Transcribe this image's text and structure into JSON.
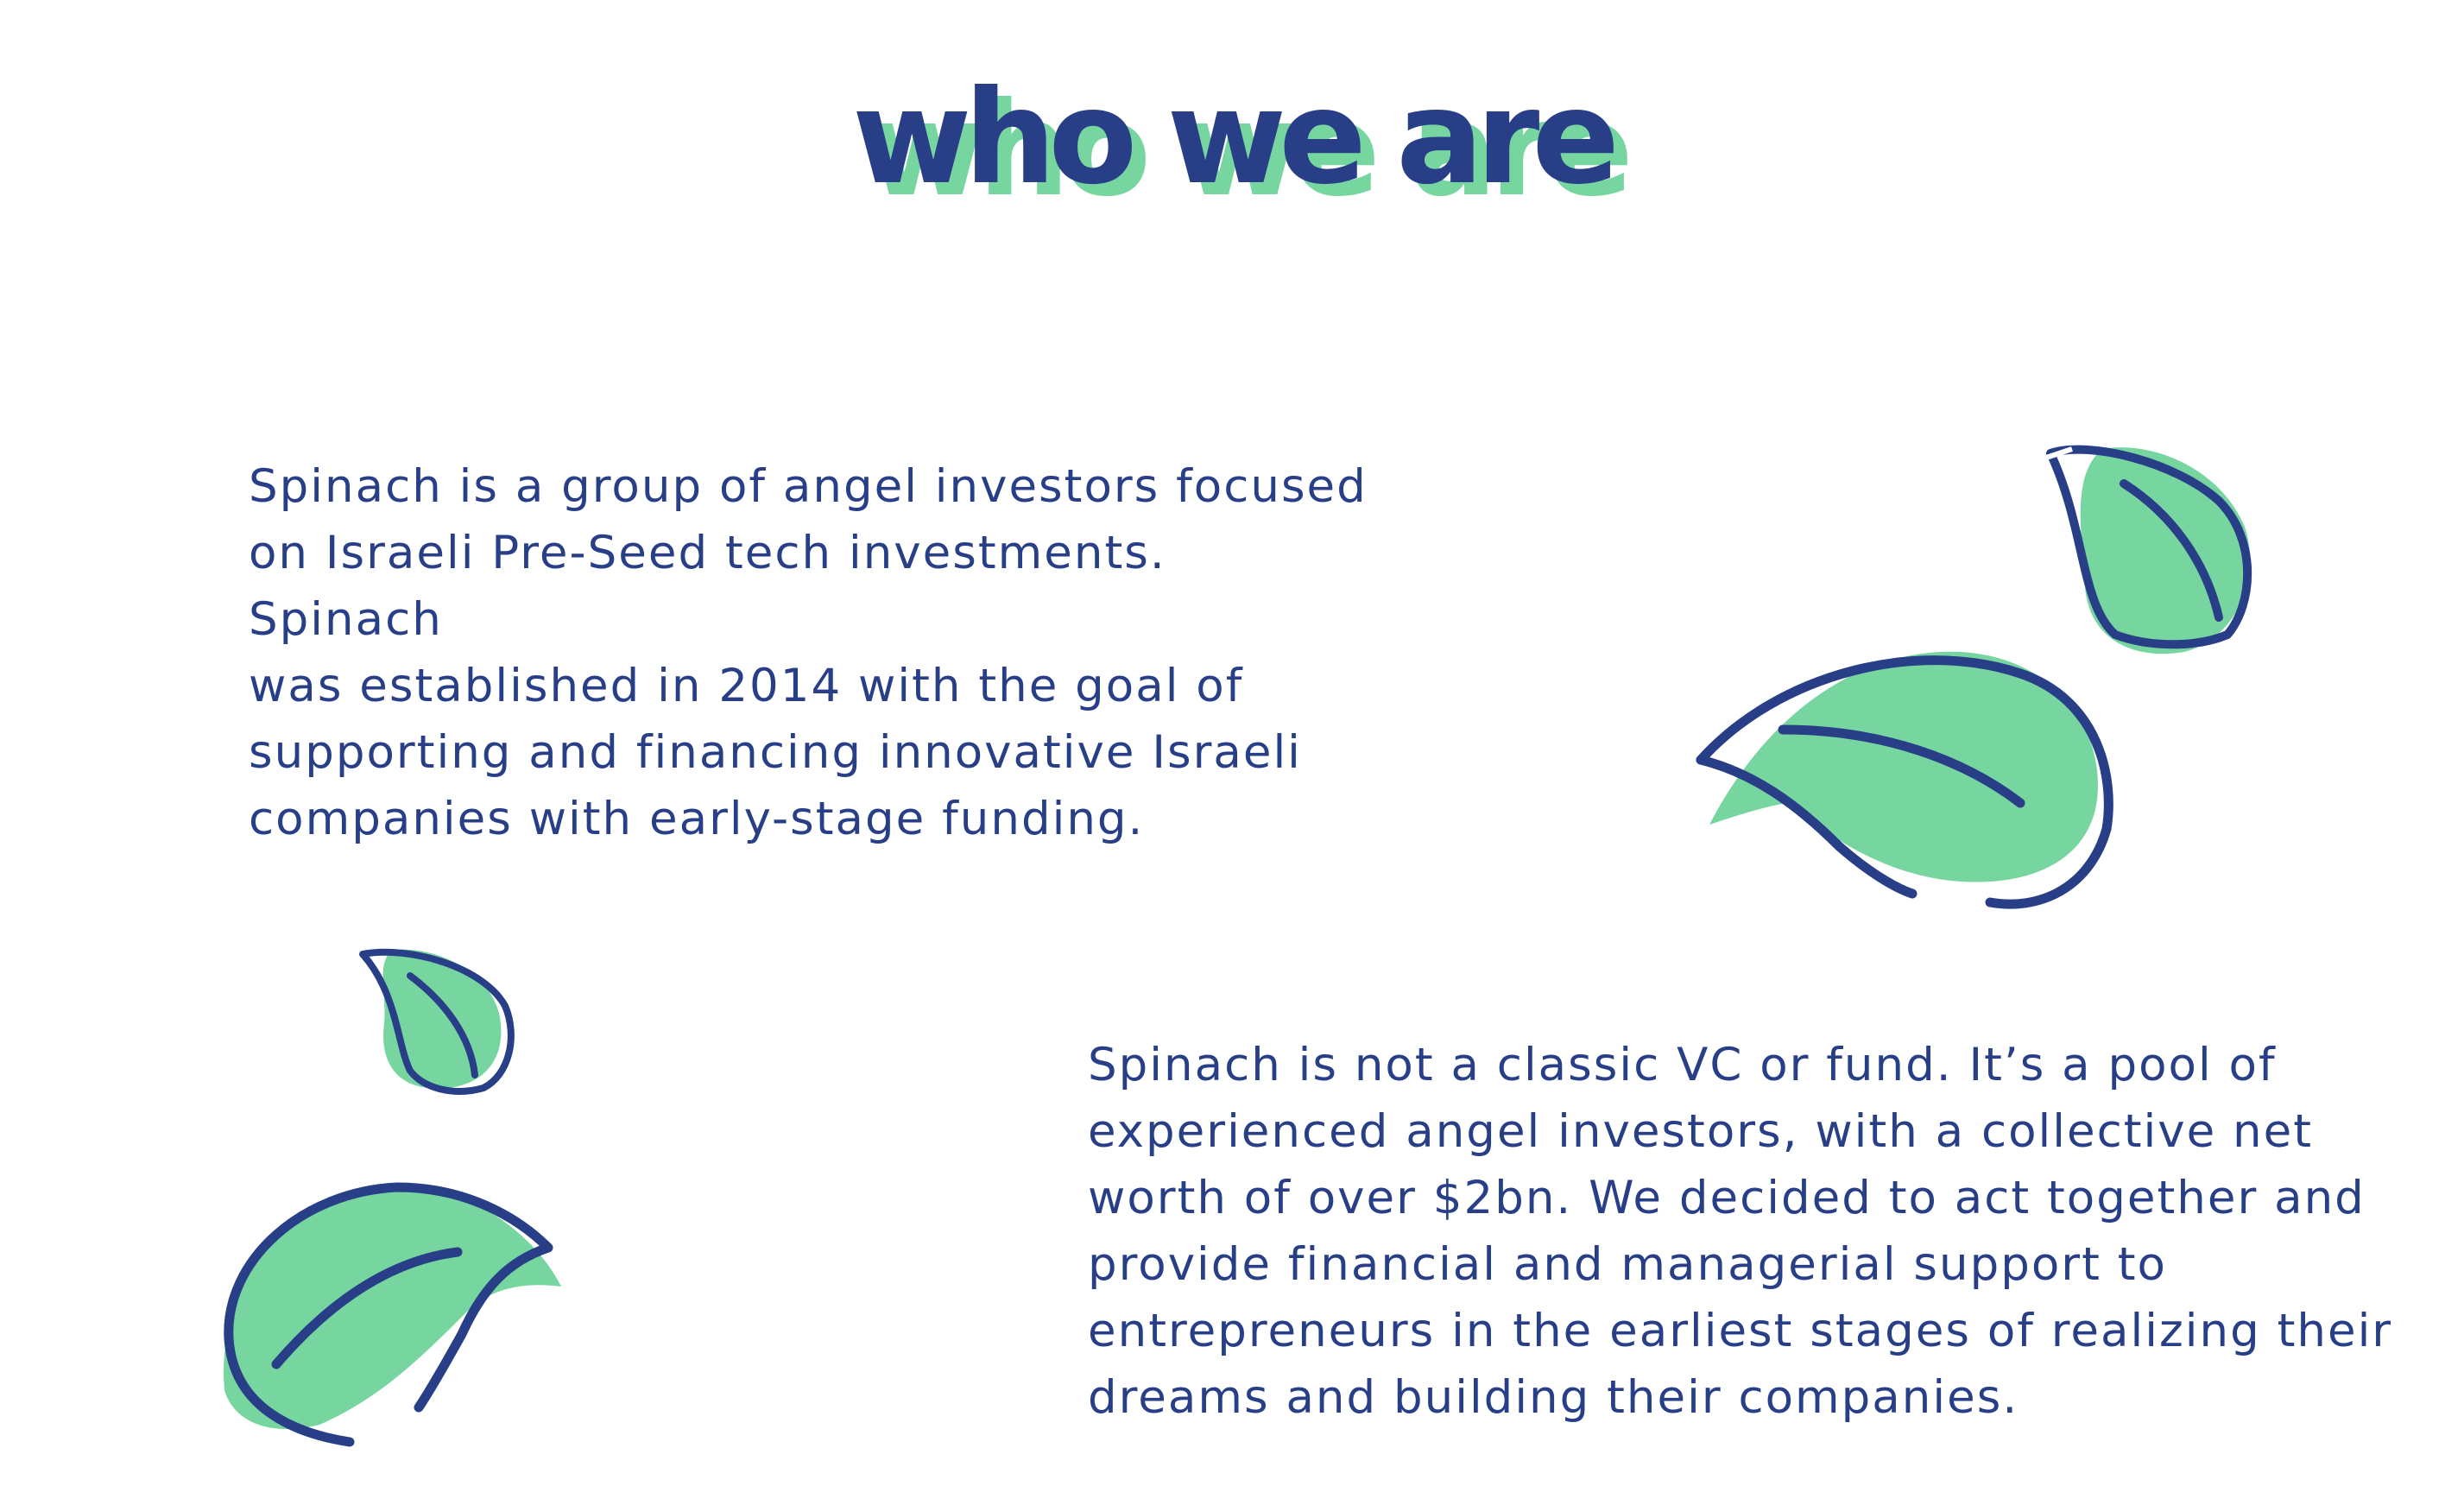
{
  "section": {
    "title": "who we are"
  },
  "paragraphs": {
    "first": "Spinach is a group of angel investors focused\non Israeli Pre-Seed tech investments. Spinach\nwas established in 2014 with the goal of\nsupporting and financing innovative Israeli\ncompanies with early-stage funding.",
    "second": "Spinach is not a classic VC or fund. It’s a pool of\nexperienced angel investors, with a collective net\nworth of over $2bn. We decided to act together and\nprovide financial and managerial support to\nentrepreneurs in the earliest stages of realizing their\ndreams and building their companies."
  },
  "colors": {
    "navy": "#283e87",
    "leaf_green": "#77d6a0",
    "background": "#ffffff"
  },
  "icons": [
    "leaf-icon"
  ]
}
